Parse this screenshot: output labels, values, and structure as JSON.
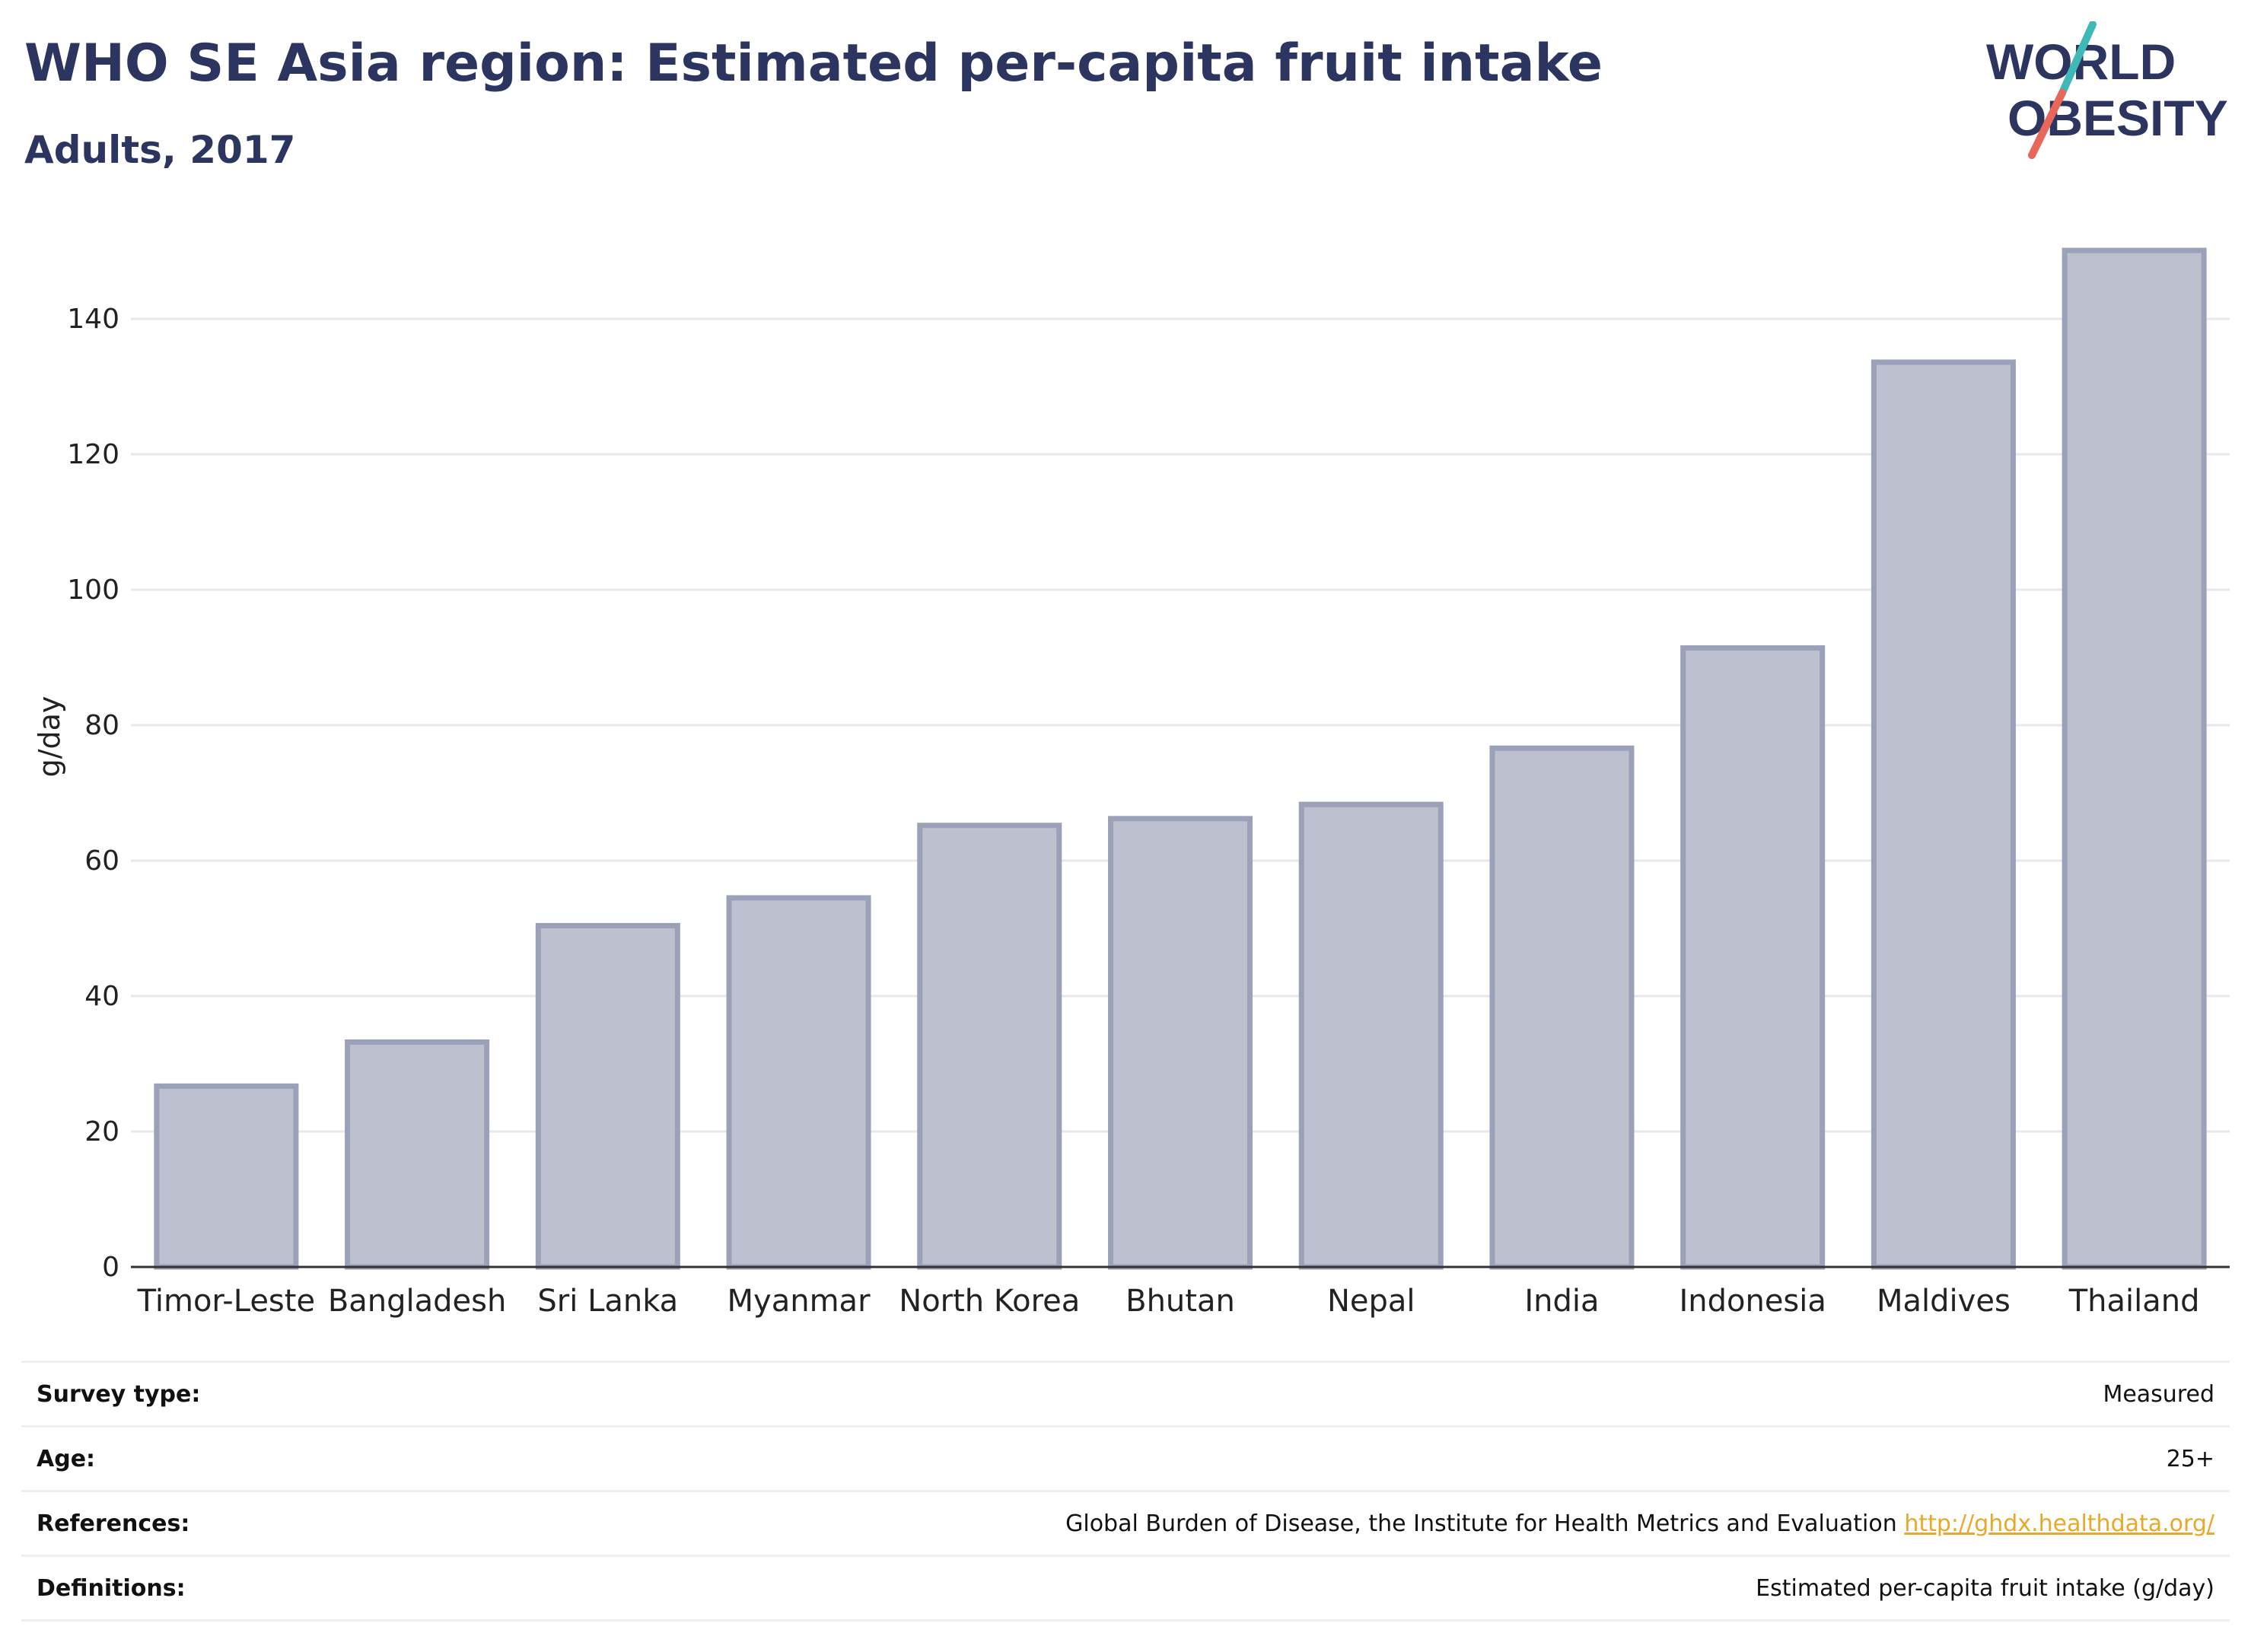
{
  "header": {
    "title": "WHO SE Asia region: Estimated per-capita fruit intake",
    "subtitle": "Adults, 2017"
  },
  "logo": {
    "line1": "WORLD",
    "line2": "OBESITY"
  },
  "colors": {
    "bar_fill": "#bcc0cf",
    "bar_stroke": "#9ba1b8",
    "text": "#2c3560",
    "grid": "#e6e8ec",
    "link": "#e8a92a",
    "logo_teal": "#3fb8b8",
    "logo_coral": "#e8665a"
  },
  "chart_data": {
    "type": "bar",
    "title": "WHO SE Asia region: Estimated per-capita fruit intake",
    "subtitle": "Adults, 2017",
    "ylabel": "g/day",
    "xlabel": "",
    "ylim": [
      0,
      150
    ],
    "yticks": [
      0,
      20,
      40,
      60,
      80,
      100,
      120,
      140
    ],
    "grid": true,
    "categories": [
      "Timor-Leste",
      "Bangladesh",
      "Sri Lanka",
      "Myanmar",
      "North Korea",
      "Bhutan",
      "Nepal",
      "India",
      "Indonesia",
      "Maldives",
      "Thailand"
    ],
    "values": [
      26.7,
      33.2,
      50.4,
      54.5,
      65.2,
      66.2,
      68.3,
      76.6,
      91.4,
      133.6,
      150.1
    ]
  },
  "meta": {
    "rows": [
      {
        "label": "Survey type:",
        "value": "Measured"
      },
      {
        "label": "Age:",
        "value": "25+"
      },
      {
        "label": "References:",
        "value": "Global Burden of Disease, the Institute for Health Metrics and Evaluation",
        "link": "http://ghdx.healthdata.org/"
      },
      {
        "label": "Definitions:",
        "value": "Estimated per-capita fruit intake (g/day)"
      }
    ]
  }
}
